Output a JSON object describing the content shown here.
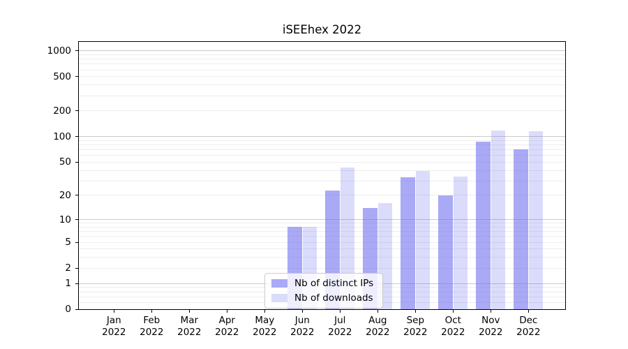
{
  "title": "iSEEhex 2022",
  "legend": {
    "items": [
      {
        "label": "Nb of distinct IPs",
        "swatch_color": "#a9a9f6"
      },
      {
        "label": "Nb of downloads",
        "swatch_color": "#dbdbfb"
      }
    ]
  },
  "chart_data": {
    "type": "bar",
    "title": "iSEEhex 2022",
    "categories": [
      "Jan",
      "Feb",
      "Mar",
      "Apr",
      "May",
      "Jun",
      "Jul",
      "Aug",
      "Sep",
      "Oct",
      "Nov",
      "Dec"
    ],
    "category_year": "2022",
    "series": [
      {
        "name": "Nb of distinct IPs",
        "values": [
          0,
          0,
          0,
          0,
          0,
          8,
          23,
          14,
          33,
          20,
          87,
          71
        ],
        "color": "rgba(112,112,240,0.6)"
      },
      {
        "name": "Nb of downloads",
        "values": [
          0,
          0,
          0,
          0,
          0,
          8,
          43,
          16,
          39,
          34,
          118,
          116
        ],
        "color": "rgba(112,112,240,0.25)"
      }
    ],
    "xlabel": "",
    "ylabel": "",
    "y_axis": {
      "scale": "log10(value+1)",
      "tick_labels": [
        "0",
        "1",
        "2",
        "5",
        "10",
        "20",
        "50",
        "100",
        "200",
        "500",
        "1000"
      ],
      "tick_values": [
        0,
        1,
        2,
        5,
        10,
        20,
        50,
        100,
        200,
        500,
        1000
      ],
      "major_gridlines": [
        1,
        10,
        100,
        1000
      ],
      "minor_gridlines": [
        0.2,
        0.4,
        0.6,
        0.8,
        2,
        3,
        4,
        5,
        6,
        7,
        8,
        9,
        20,
        30,
        40,
        50,
        60,
        70,
        80,
        90,
        200,
        300,
        400,
        500,
        600,
        700,
        800,
        900
      ],
      "ylim": [
        0,
        1300
      ]
    },
    "grid": "horizontal",
    "legend_position": "lower-center-inside",
    "colors": {
      "bar_base": "#7070f0",
      "gridline_minor": "#ededed",
      "gridline_major": "#c9c9c9",
      "axis": "#000000"
    }
  }
}
